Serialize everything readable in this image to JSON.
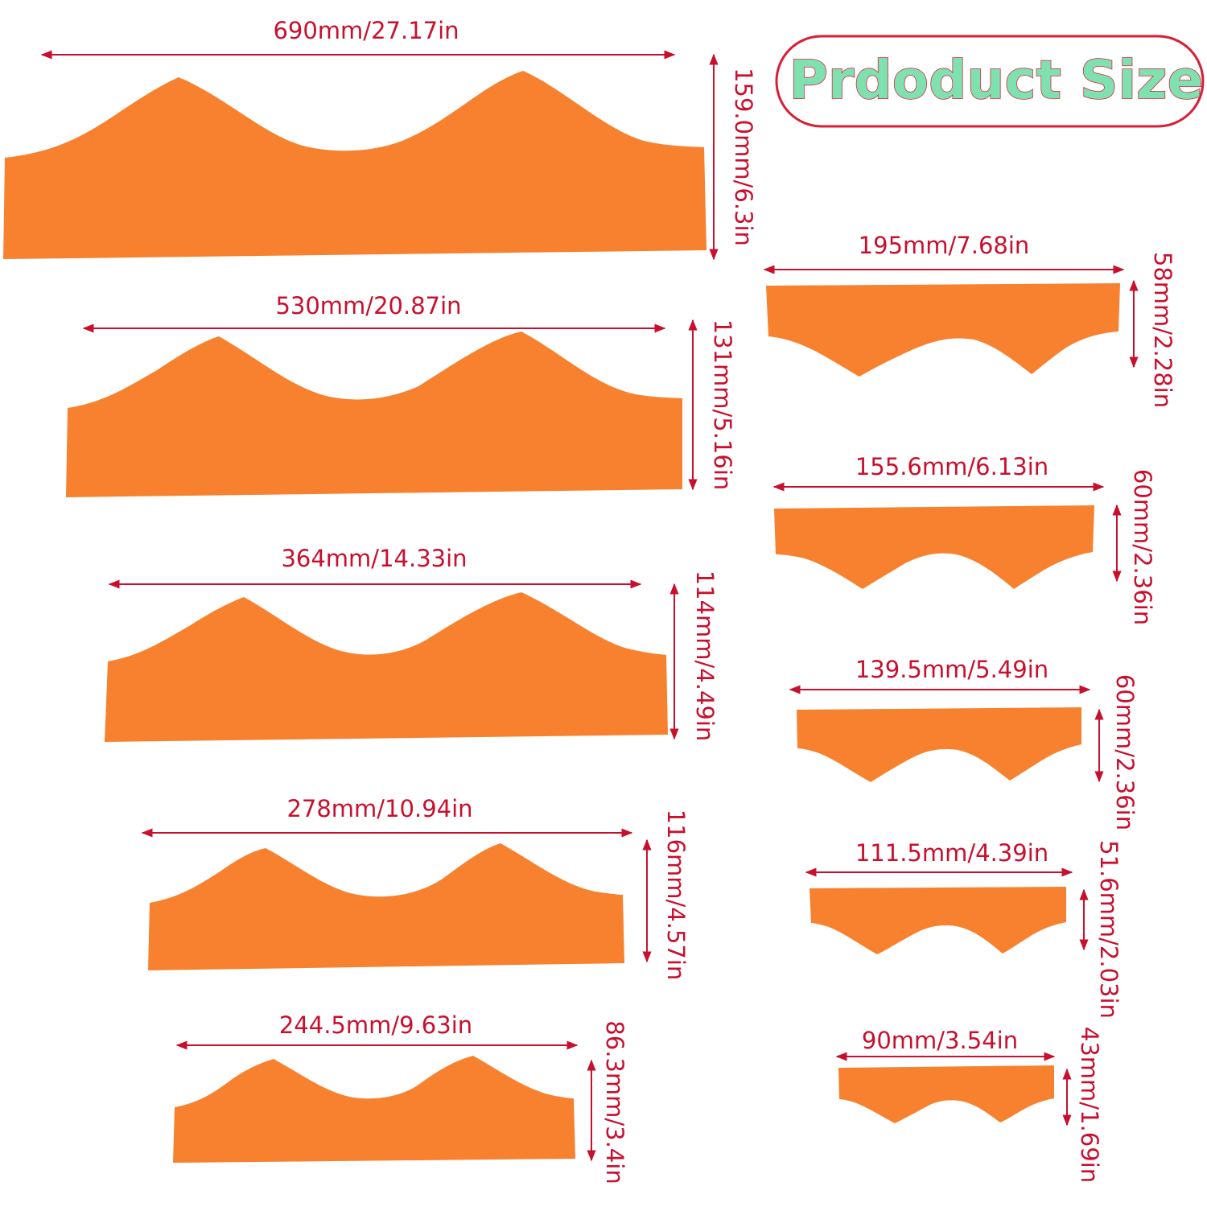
{
  "title": "Prdoduct Size",
  "colors": {
    "shape_fill": "#f7812e",
    "dimension_line": "#c8102e",
    "title_fill": "#7fe0b0",
    "title_border": "#d91e36"
  },
  "pieces": [
    {
      "id": "piece-1",
      "width_label": "690mm/27.17in",
      "height_label": "159.0mm/6.3in"
    },
    {
      "id": "piece-2",
      "width_label": "530mm/20.87in",
      "height_label": "131mm/5.16in"
    },
    {
      "id": "piece-3",
      "width_label": "364mm/14.33in",
      "height_label": "114mm/4.49in"
    },
    {
      "id": "piece-4",
      "width_label": "278mm/10.94in",
      "height_label": "116mm/4.57in"
    },
    {
      "id": "piece-5",
      "width_label": "244.5mm/9.63in",
      "height_label": "86.3mm/3.4in"
    },
    {
      "id": "piece-6",
      "width_label": "195mm/7.68in",
      "height_label": "58mm/2.28in"
    },
    {
      "id": "piece-7",
      "width_label": "155.6mm/6.13in",
      "height_label": "60mm/2.36in"
    },
    {
      "id": "piece-8",
      "width_label": "139.5mm/5.49in",
      "height_label": "60mm/2.36in"
    },
    {
      "id": "piece-9",
      "width_label": "111.5mm/4.39in",
      "height_label": "51.6mm/2.03in"
    },
    {
      "id": "piece-10",
      "width_label": "90mm/3.54in",
      "height_label": "43mm/1.69in"
    }
  ]
}
